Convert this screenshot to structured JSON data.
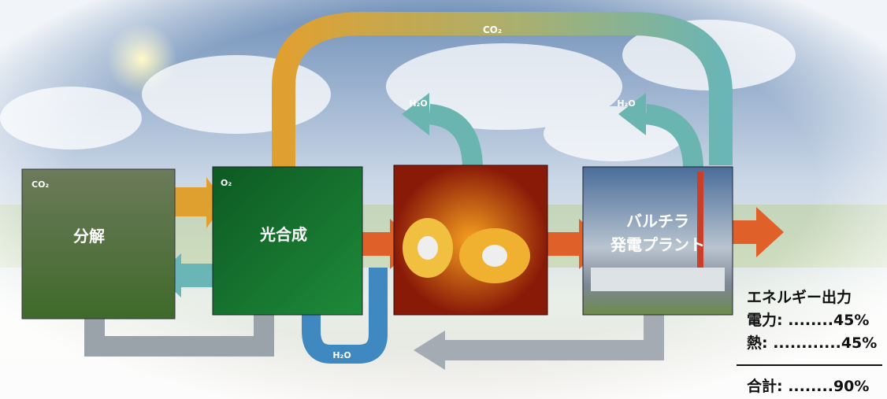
{
  "diagram": {
    "top_arrow_label": "CO₂",
    "h2o_labels": [
      "H₂O",
      "H₂O",
      "H₂O"
    ],
    "panels": [
      {
        "corner_label": "CO₂",
        "label": "分解"
      },
      {
        "corner_label": "O₂",
        "label": "光合成"
      },
      {
        "label_lines": [
          "バルチラ",
          "発電プラント"
        ]
      }
    ],
    "energy_output": {
      "title": "エネルギー出力",
      "rows": [
        "電力: ........45%",
        "熱: ............45%"
      ],
      "total": "合計: ........90%"
    }
  }
}
